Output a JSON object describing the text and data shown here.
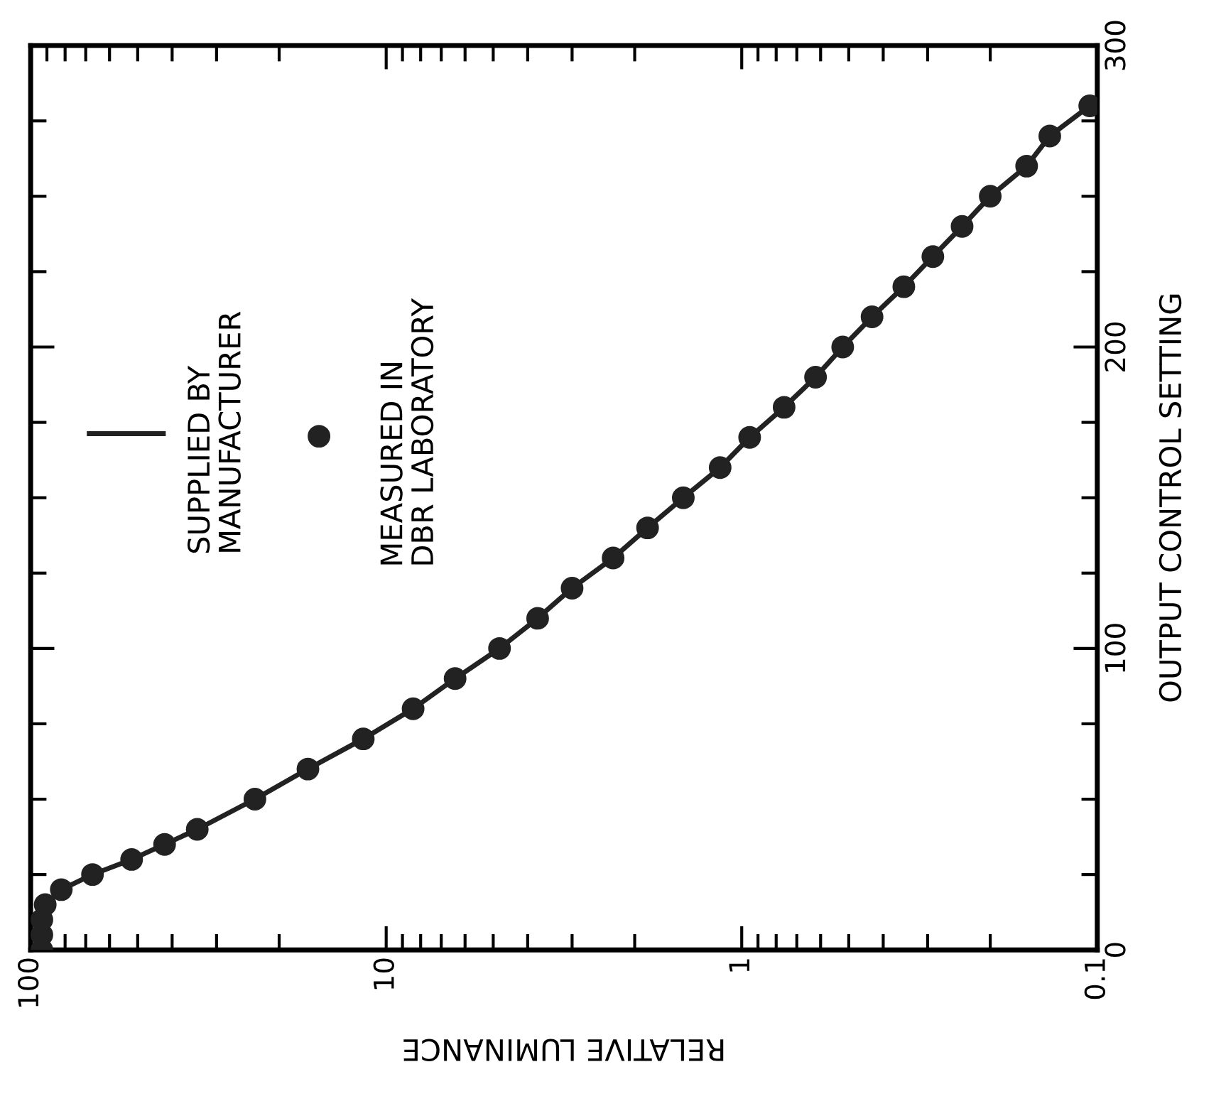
{
  "chart_data": {
    "type": "line",
    "xlabel": "RELATIVE LUMINANCE",
    "ylabel": "OUTPUT CONTROL SETTING",
    "log": "x",
    "xlim": [
      100,
      0.1
    ],
    "xticks": [
      100,
      10,
      1,
      0.1
    ],
    "ylim": [
      0,
      300
    ],
    "yticks": [
      0,
      100,
      200,
      300
    ],
    "grid": false,
    "legend": "top left",
    "line_style": "solid",
    "series": [
      {
        "name": "SUPPLIED BY\nMANUFACTURER",
        "color": "#222222",
        "x": [
          93,
          93,
          93,
          91,
          82,
          67,
          52,
          42,
          34,
          23.4,
          16.6,
          11.6,
          8.4,
          6.4,
          4.8,
          3.75,
          3.0,
          2.3,
          1.84,
          1.46,
          1.15,
          0.95,
          0.76,
          0.62,
          0.52,
          0.43,
          0.35,
          0.29,
          0.24,
          0.2,
          0.158,
          0.136,
          0.105
        ],
        "values": [
          0,
          5,
          10,
          15,
          20,
          25,
          30,
          35,
          40,
          50,
          60,
          70,
          80,
          90,
          100,
          110,
          120,
          130,
          140,
          150,
          160,
          170,
          180,
          190,
          200,
          210,
          220,
          230,
          240,
          250,
          260,
          270,
          280
        ]
      },
      {
        "name": "MEASURED IN\nDBR LABORATORY",
        "type": "scatter",
        "marker": "circle",
        "color": "#222222",
        "x": [
          93,
          93,
          93,
          91,
          82,
          67,
          52,
          42,
          34,
          23.4,
          16.6,
          11.6,
          8.4,
          6.4,
          4.8,
          3.75,
          3.0,
          2.3,
          1.84,
          1.46,
          1.15,
          0.95,
          0.76,
          0.62,
          0.52,
          0.43,
          0.35,
          0.29,
          0.24,
          0.2,
          0.158,
          0.136,
          0.105
        ],
        "values": [
          0,
          5,
          10,
          15,
          20,
          25,
          30,
          35,
          40,
          50,
          60,
          70,
          80,
          90,
          100,
          110,
          120,
          130,
          140,
          150,
          160,
          170,
          180,
          190,
          200,
          210,
          220,
          230,
          240,
          250,
          260,
          270,
          280
        ]
      }
    ]
  }
}
